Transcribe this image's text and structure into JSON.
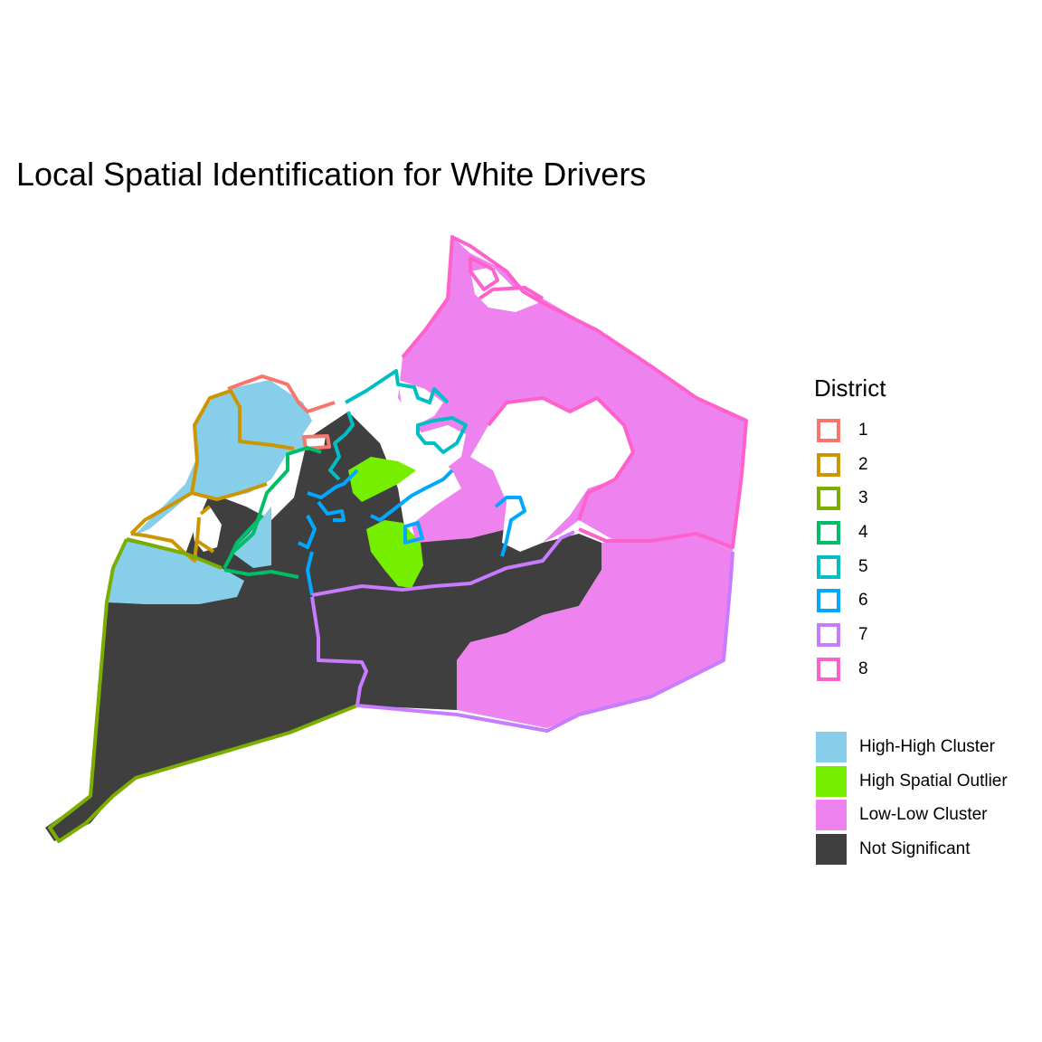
{
  "title": "Local Spatial Identification for White Drivers",
  "legend": {
    "district_title": "District",
    "districts": [
      {
        "label": "1",
        "color": "#F8766D"
      },
      {
        "label": "2",
        "color": "#CD9600"
      },
      {
        "label": "3",
        "color": "#7CAE00"
      },
      {
        "label": "4",
        "color": "#00BE67"
      },
      {
        "label": "5",
        "color": "#00BFC4"
      },
      {
        "label": "6",
        "color": "#00A9FF"
      },
      {
        "label": "7",
        "color": "#C77CFF"
      },
      {
        "label": "8",
        "color": "#FF61CC"
      }
    ],
    "categories": [
      {
        "label": "High-High Cluster",
        "color": "#87CEEB"
      },
      {
        "label": "High Spatial Outlier",
        "color": "#76EE00"
      },
      {
        "label": "Low-Low Cluster",
        "color": "#EE82EE"
      },
      {
        "label": "Not Significant",
        "color": "#3F3F3F"
      }
    ]
  }
}
